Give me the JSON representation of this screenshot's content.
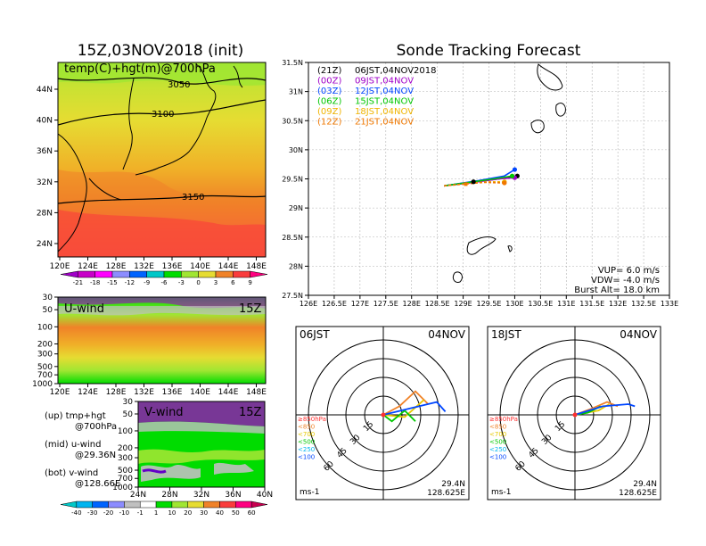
{
  "left_panel": {
    "title": "15Z,03NOV2018 (init)",
    "map_label": "temp(C)+hgt(m)@700hPa",
    "contours": [
      "3050",
      "3100",
      "3150"
    ],
    "x_ticks": [
      "120E",
      "124E",
      "128E",
      "132E",
      "136E",
      "140E",
      "144E",
      "148E"
    ],
    "y_ticks": [
      "44N",
      "40N",
      "36N",
      "32N",
      "28N",
      "24N"
    ],
    "temp_colorbar": {
      "labels": [
        "-21",
        "-18",
        "-15",
        "-12",
        "-9",
        "-6",
        "-3",
        "0",
        "3",
        "6",
        "9"
      ],
      "colors": [
        "#a000c8",
        "#c800c8",
        "#ff00ff",
        "#8c8cff",
        "#0064ff",
        "#00c8c8",
        "#00dc00",
        "#a0e632",
        "#e6dc32",
        "#f08228",
        "#fa3c3c",
        "#ff0080"
      ]
    }
  },
  "u_wind": {
    "label": "U-wind",
    "time": "15Z",
    "y_ticks": [
      "30",
      "50",
      "100",
      "200",
      "300",
      "500",
      "700",
      "1000"
    ],
    "x_ticks": [
      "120E",
      "124E",
      "128E",
      "132E",
      "136E",
      "140E",
      "144E",
      "148E"
    ]
  },
  "v_wind": {
    "label": "V-wind",
    "time": "15Z",
    "y_ticks": [
      "30",
      "50",
      "100",
      "200",
      "300",
      "500",
      "700",
      "1000"
    ],
    "x_ticks": [
      "24N",
      "28N",
      "32N",
      "36N",
      "40N"
    ]
  },
  "legend_notes": [
    {
      "head": "(up) tmp+hgt",
      "sub": "@700hPa"
    },
    {
      "head": "(mid) u-wind",
      "sub": "@29.36N"
    },
    {
      "head": "(bot) v-wind",
      "sub": "@128.66E"
    }
  ],
  "wind_colorbar": {
    "labels": [
      "-40",
      "-30",
      "-20",
      "-10",
      "-1",
      "1",
      "10",
      "20",
      "30",
      "40",
      "50",
      "60"
    ],
    "colors": [
      "#00c8c8",
      "#00b4f0",
      "#0064ff",
      "#8c8cff",
      "#c0c0c0",
      "#ffffff",
      "#00dc00",
      "#a0e632",
      "#e6dc32",
      "#f08228",
      "#fa3c3c",
      "#ff0080",
      "#c80050"
    ]
  },
  "tracking": {
    "title": "Sonde Tracking Forecast",
    "x_ticks": [
      "126E",
      "126.5E",
      "127E",
      "127.5E",
      "128E",
      "128.5E",
      "129E",
      "129.5E",
      "130E",
      "130.5E",
      "131E",
      "131.5E",
      "132E",
      "132.5E",
      "133E"
    ],
    "y_ticks": [
      "31.5N",
      "31N",
      "30.5N",
      "30N",
      "29.5N",
      "29N",
      "28.5N",
      "28N",
      "27.5N"
    ],
    "legend": [
      {
        "code": "(21Z)",
        "time": "06JST,04NOV2018",
        "color": "#000000"
      },
      {
        "code": "(00Z)",
        "time": "09JST,04NOV",
        "color": "#a000c8"
      },
      {
        "code": "(03Z)",
        "time": "12JST,04NOV",
        "color": "#0046ff"
      },
      {
        "code": "(06Z)",
        "time": "15JST,04NOV",
        "color": "#00c800"
      },
      {
        "code": "(09Z)",
        "time": "18JST,04NOV",
        "color": "#f0b400"
      },
      {
        "code": "(12Z)",
        "time": "21JST,04NOV",
        "color": "#f07800"
      }
    ],
    "params": [
      "VUP= 6.0 m/s",
      "VDW= -4.0 m/s",
      "Burst Alt= 18.0 km"
    ]
  },
  "hodographs": [
    {
      "time_label": "06JST",
      "date_label": "04NOV",
      "lat": "29.4N",
      "lon": "128.625E",
      "unit": "ms-1"
    },
    {
      "time_label": "18JST",
      "date_label": "04NOV",
      "lat": "29.4N",
      "lon": "128.625E",
      "unit": "ms-1"
    }
  ],
  "hodo_rings": [
    "15",
    "30",
    "45",
    "60"
  ],
  "hodo_levels": [
    {
      "label": "≥850hPa",
      "color": "#ff3030"
    },
    {
      "label": "<850",
      "color": "#f08228"
    },
    {
      "label": "<700",
      "color": "#e6c800"
    },
    {
      "label": "<500",
      "color": "#00c800"
    },
    {
      "label": "<250",
      "color": "#00b4f0"
    },
    {
      "label": "<100",
      "color": "#0046ff"
    }
  ],
  "chart_data": [
    {
      "type": "line",
      "title": "Sonde Tracking Forecast",
      "xlim": [
        126,
        133
      ],
      "ylim": [
        27.5,
        31.5
      ],
      "series": [
        {
          "name": "(21Z) 06JST,04NOV2018",
          "x": [
            128.63,
            129.2,
            129.7,
            130.05
          ],
          "y": [
            29.38,
            29.45,
            29.5,
            29.55
          ]
        },
        {
          "name": "(00Z) 09JST,04NOV",
          "x": [
            128.63,
            129.2,
            129.7,
            130.0
          ],
          "y": [
            29.38,
            29.44,
            29.5,
            29.52
          ]
        },
        {
          "name": "(03Z) 12JST,04NOV",
          "x": [
            128.63,
            129.3,
            129.8,
            130.0
          ],
          "y": [
            29.38,
            29.47,
            29.55,
            29.66
          ]
        },
        {
          "name": "(06Z) 15JST,04NOV",
          "x": [
            128.63,
            129.2,
            129.6,
            129.95
          ],
          "y": [
            29.38,
            29.45,
            29.5,
            29.55
          ]
        },
        {
          "name": "(09Z) 18JST,04NOV",
          "x": [
            128.63,
            129.1,
            129.5,
            129.8
          ],
          "y": [
            29.38,
            29.42,
            29.45,
            29.45
          ]
        },
        {
          "name": "(12Z) 21JST,04NOV",
          "x": [
            128.63,
            129.0,
            129.4,
            129.8
          ],
          "y": [
            29.38,
            29.41,
            29.44,
            29.43
          ]
        }
      ]
    },
    {
      "type": "heatmap",
      "title": "temp(C)+hgt(m)@700hPa",
      "xlim": [
        120,
        150
      ],
      "ylim": [
        22,
        48
      ],
      "contour_levels": [
        3050,
        3100,
        3150
      ]
    }
  ]
}
